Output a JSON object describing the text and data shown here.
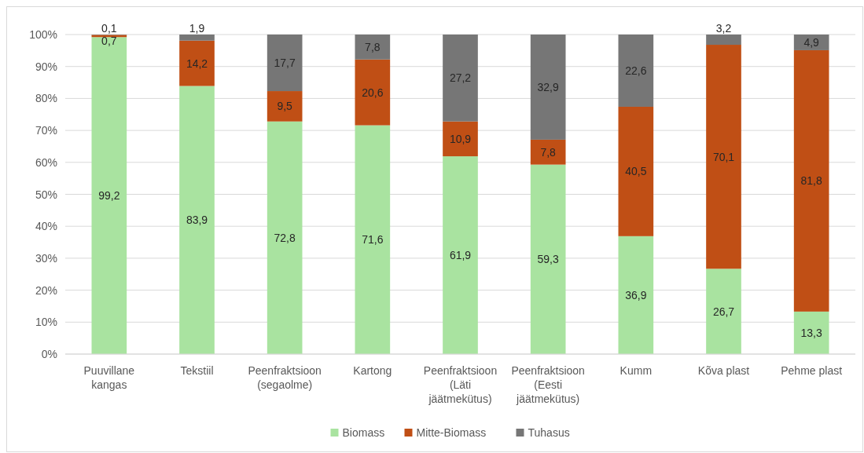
{
  "chart_data": {
    "type": "bar",
    "stacked": true,
    "categories": [
      "Puuvillane kangas",
      "Tekstiil",
      "Peenfraktsioon (segaolme)",
      "Kartong",
      "Peenfraktsioon (Läti jäätmekütus)",
      "Peenfraktsioon (Eesti jäätmekütus)",
      "Kumm",
      "Kõva plast",
      "Pehme plast"
    ],
    "series": [
      {
        "name": "Biomass",
        "color": "#a9e3a0",
        "values": [
          99.2,
          83.9,
          72.8,
          71.6,
          61.9,
          59.3,
          36.9,
          26.7,
          13.3
        ],
        "value_labels": [
          "99,2",
          "83,9",
          "72,8",
          "71,6",
          "61,9",
          "59,3",
          "36,9",
          "26,7",
          "13,3"
        ]
      },
      {
        "name": "Mitte-Biomass",
        "color": "#c04f15",
        "values": [
          0.7,
          14.2,
          9.5,
          20.6,
          10.9,
          7.8,
          40.5,
          70.1,
          81.8
        ],
        "value_labels": [
          "0,7",
          "14,2",
          "9,5",
          "20,6",
          "10,9",
          "7,8",
          "40,5",
          "70,1",
          "81,8"
        ]
      },
      {
        "name": "Tuhasus",
        "color": "#767676",
        "values": [
          0.1,
          1.9,
          17.7,
          7.8,
          27.2,
          32.9,
          22.6,
          3.2,
          4.9
        ],
        "value_labels": [
          "0,1",
          "1,9",
          "17,7",
          "7,8",
          "27,2",
          "32,9",
          "22,6",
          "3,2",
          "4,9"
        ]
      }
    ],
    "ylim": [
      0,
      100
    ],
    "yticks": [
      {
        "value": 0,
        "label": "0%"
      },
      {
        "value": 10,
        "label": "10%"
      },
      {
        "value": 20,
        "label": "20%"
      },
      {
        "value": 30,
        "label": "30%"
      },
      {
        "value": 40,
        "label": "40%"
      },
      {
        "value": 50,
        "label": "50%"
      },
      {
        "value": 60,
        "label": "60%"
      },
      {
        "value": 70,
        "label": "70%"
      },
      {
        "value": 80,
        "label": "80%"
      },
      {
        "value": 90,
        "label": "90%"
      },
      {
        "value": 100,
        "label": "100%"
      }
    ],
    "grid": "y",
    "legend": "bottom"
  }
}
